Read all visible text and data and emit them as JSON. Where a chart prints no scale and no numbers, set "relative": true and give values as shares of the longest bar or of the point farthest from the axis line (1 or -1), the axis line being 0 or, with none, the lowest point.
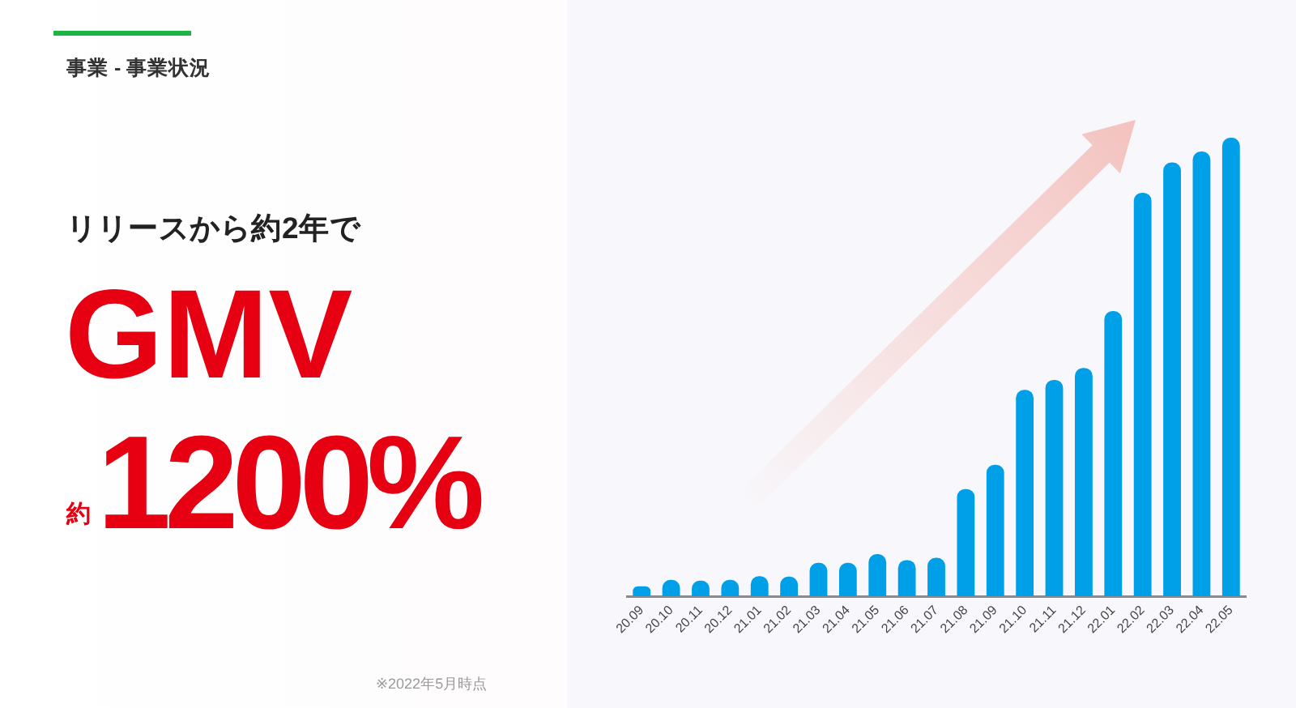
{
  "chart_data": {
    "type": "bar",
    "title": "事業 - 事業状況",
    "subtitle": "リリースから約2年で",
    "annotations": [
      "GMV",
      "約",
      "1200%",
      "※2022年5月時点"
    ],
    "categories": [
      "20.09",
      "20.10",
      "20.11",
      "20.12",
      "21.01",
      "21.02",
      "21.03",
      "21.04",
      "21.05",
      "21.06",
      "21.07",
      "21.08",
      "21.09",
      "21.10",
      "21.11",
      "21.12",
      "22.01",
      "22.02",
      "22.03",
      "22.04",
      "22.05"
    ],
    "values": [
      0.022,
      0.036,
      0.034,
      0.036,
      0.044,
      0.043,
      0.073,
      0.073,
      0.092,
      0.079,
      0.084,
      0.234,
      0.287,
      0.45,
      0.472,
      0.498,
      0.622,
      0.88,
      0.946,
      0.97,
      1
    ],
    "color": "#00a0e9",
    "relative": true,
    "legend": false
  }
}
